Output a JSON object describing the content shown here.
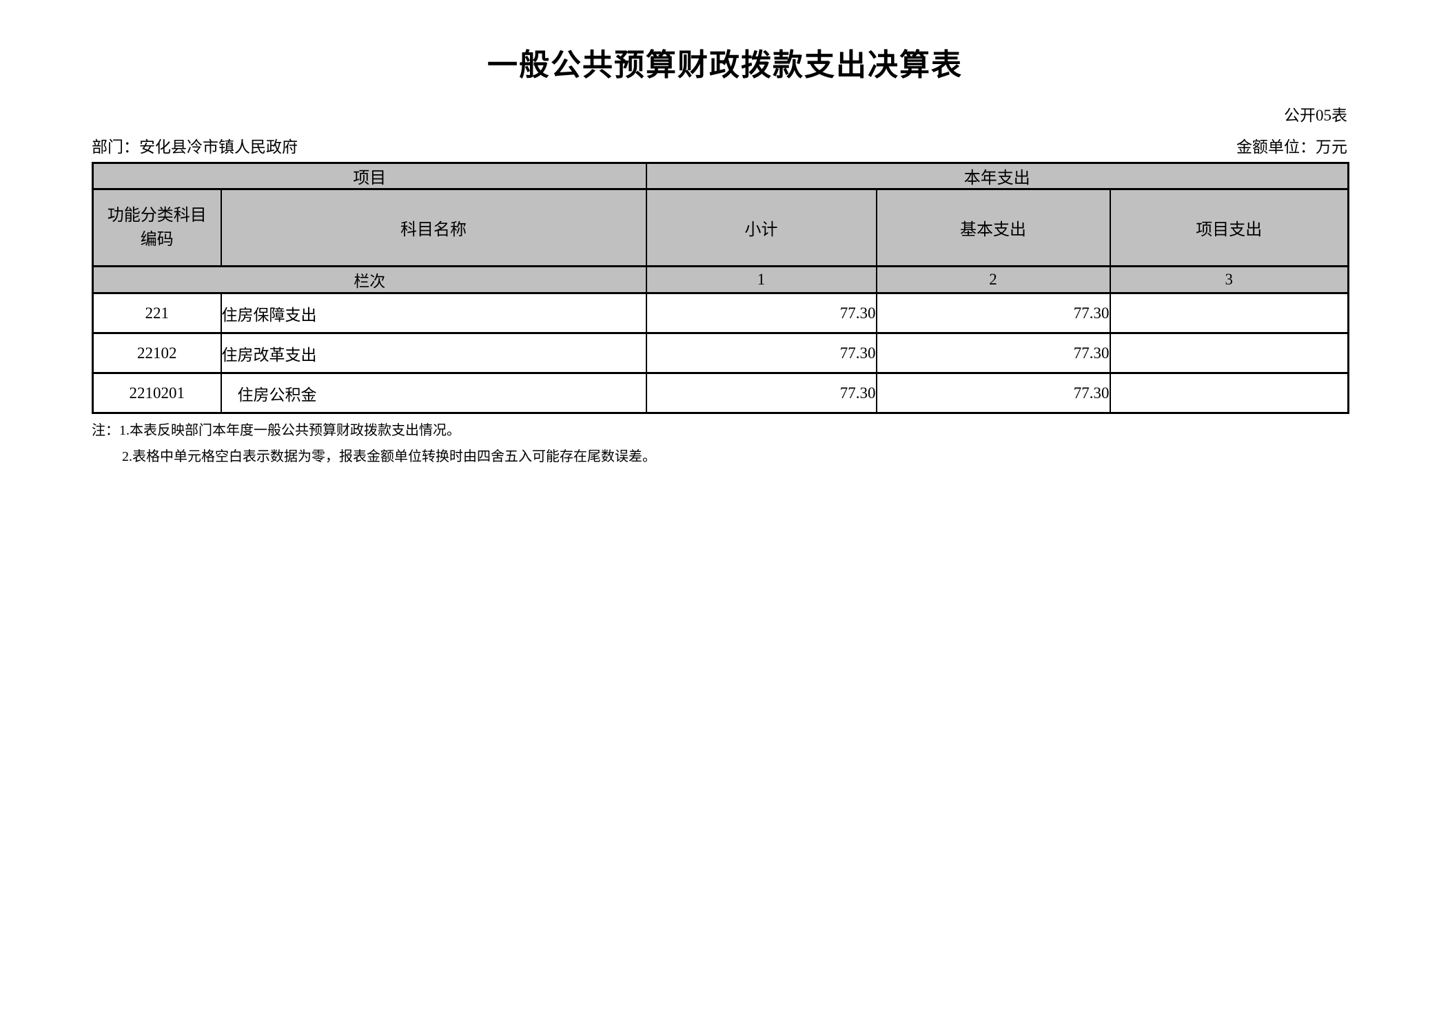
{
  "document": {
    "title": "一般公共预算财政拨款支出决算表",
    "sheet_label": "公开05表",
    "department": "部门：安化县冷市镇人民政府",
    "unit": "金额单位：万元"
  },
  "table": {
    "group_headers": {
      "project": "项目",
      "current_year": "本年支出"
    },
    "columns": {
      "code": "功能分类科目编码",
      "name": "科目名称",
      "subtotal": "小计",
      "basic": "基本支出",
      "project": "项目支出"
    },
    "index_row": {
      "label": "栏次",
      "c1": "1",
      "c2": "2",
      "c3": "3"
    },
    "rows": [
      {
        "code": "221",
        "name": "住房保障支出",
        "subtotal": "77.30",
        "basic": "77.30",
        "project": ""
      },
      {
        "code": "22102",
        "name": "住房改革支出",
        "subtotal": "77.30",
        "basic": "77.30",
        "project": ""
      },
      {
        "code": "2210201",
        "name": "　住房公积金",
        "subtotal": "77.30",
        "basic": "77.30",
        "project": ""
      }
    ]
  },
  "notes": {
    "line1": "注：1.本表反映部门本年度一般公共预算财政拨款支出情况。",
    "line2": "2.表格中单元格空白表示数据为零，报表金额单位转换时由四舍五入可能存在尾数误差。"
  },
  "colors": {
    "header_fill": "#c0c0c0",
    "border": "#000000",
    "text": "#000000",
    "background": "#ffffff"
  }
}
